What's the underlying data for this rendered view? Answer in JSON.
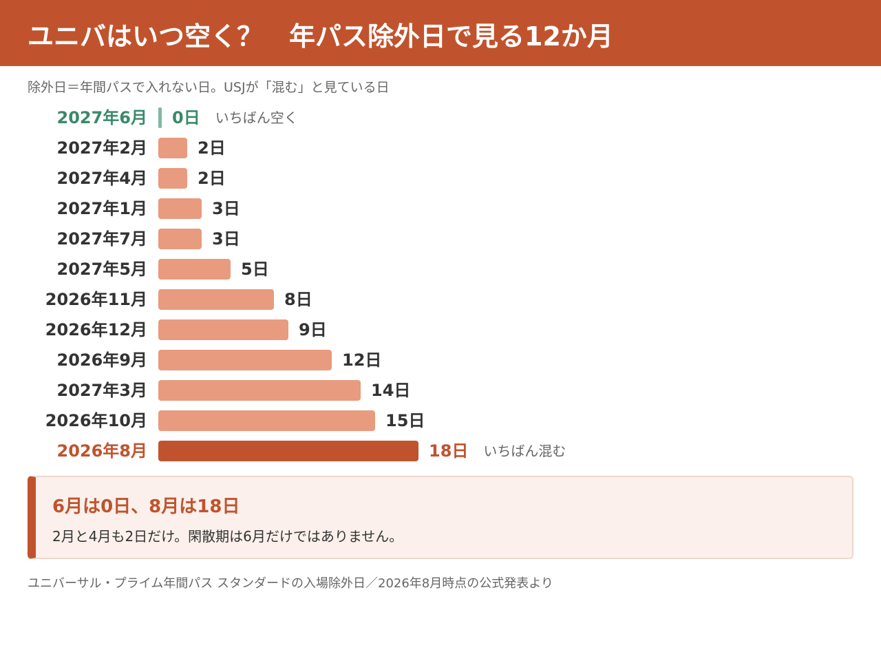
{
  "header": {
    "title": "ユニバはいつ空く？　年パス除外日で見る12か月"
  },
  "subtitle": "除外日＝年間パスで入れない日。USJが「混む」と見ている日",
  "colors": {
    "header": "#c0532d",
    "bar": "#e89b7e",
    "max_bar": "#c0532d",
    "min_bar": "#7fb9a0",
    "min_label": "#3a8a6a"
  },
  "chart_data": {
    "type": "bar",
    "orientation": "horizontal",
    "categories": [
      "2027年6月",
      "2027年2月",
      "2027年4月",
      "2027年1月",
      "2027年7月",
      "2027年5月",
      "2026年11月",
      "2026年12月",
      "2026年9月",
      "2027年3月",
      "2026年10月",
      "2026年8月"
    ],
    "values": [
      0,
      2,
      2,
      3,
      3,
      5,
      8,
      9,
      12,
      14,
      15,
      18
    ],
    "value_labels": [
      "0日",
      "2日",
      "2日",
      "3日",
      "3日",
      "5日",
      "8日",
      "9日",
      "12日",
      "14日",
      "15日",
      "18日"
    ],
    "annotations": [
      {
        "index": 0,
        "text": "いちばん空く"
      },
      {
        "index": 11,
        "text": "いちばん混む"
      }
    ]
  },
  "callout": {
    "title": "6月は0日、8月は18日",
    "body": "2月と4月も2日だけ。閑散期は6月だけではありません。"
  },
  "source": "ユニバーサル・プライム年間パス スタンダードの入場除外日／2026年8月時点の公式発表より"
}
